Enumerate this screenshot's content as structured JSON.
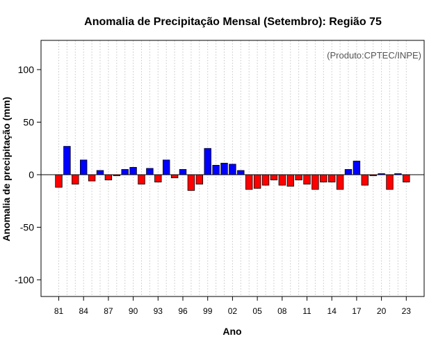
{
  "chart_data": {
    "type": "bar",
    "title": "Anomalia de Precipitação Mensal (Setembro): Região 75",
    "xlabel": "Ano",
    "ylabel": "Anomalia de precipitação (mm)",
    "annotation": "(Produto:CPTEC/INPE)",
    "ylim": [
      -115,
      128
    ],
    "yticks": [
      -100,
      -50,
      0,
      50,
      100
    ],
    "xtick_labels": [
      "81",
      "84",
      "87",
      "90",
      "93",
      "96",
      "99",
      "02",
      "05",
      "08",
      "11",
      "14",
      "17",
      "20",
      "23"
    ],
    "categories": [
      "1981",
      "1982",
      "1983",
      "1984",
      "1985",
      "1986",
      "1987",
      "1988",
      "1989",
      "1990",
      "1991",
      "1992",
      "1993",
      "1994",
      "1995",
      "1996",
      "1997",
      "1998",
      "1999",
      "2000",
      "2001",
      "2002",
      "2003",
      "2004",
      "2005",
      "2006",
      "2007",
      "2008",
      "2009",
      "2010",
      "2011",
      "2012",
      "2013",
      "2014",
      "2015",
      "2016",
      "2017",
      "2018",
      "2019",
      "2020",
      "2021",
      "2022",
      "2023"
    ],
    "values": [
      -12,
      27,
      -9,
      14,
      -6,
      4,
      -5,
      -1,
      5,
      7,
      -9,
      6,
      -7,
      14,
      -3,
      5,
      -15,
      -9,
      25,
      9,
      11,
      10,
      4,
      -14,
      -13,
      -10,
      -5,
      -10,
      -11,
      -5,
      -9,
      -14,
      -7,
      -7,
      -14,
      5,
      13,
      -10,
      -1,
      1,
      -14,
      1,
      -7
    ],
    "colors": {
      "positive": "#0000ff",
      "negative": "#ff0000",
      "grid": "#d3d3d3"
    },
    "grid": true,
    "zero_line": true
  }
}
